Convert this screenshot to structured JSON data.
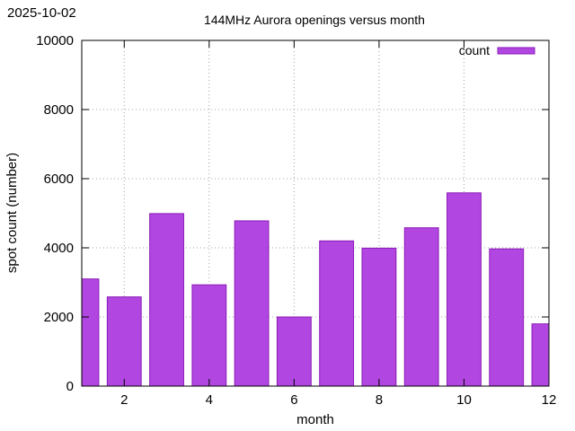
{
  "date_stamp": "2025-10-02",
  "chart_data": {
    "type": "bar",
    "title": "144MHz Aurora openings versus month",
    "xlabel": "month",
    "ylabel": "spot count (number)",
    "xlim": [
      1,
      12
    ],
    "ylim": [
      0,
      10000
    ],
    "x_ticks": [
      2,
      4,
      6,
      8,
      10,
      12
    ],
    "y_ticks": [
      0,
      2000,
      4000,
      6000,
      8000,
      10000
    ],
    "grid": true,
    "legend_position": "top-right",
    "series": [
      {
        "name": "count",
        "color": "#b147e0",
        "stroke": "#8a1ab8",
        "x": [
          1,
          2,
          3,
          4,
          5,
          6,
          7,
          8,
          9,
          10,
          11,
          12
        ],
        "values": [
          3100,
          2580,
          4990,
          2930,
          4780,
          2000,
          4200,
          3990,
          4580,
          5590,
          3970,
          1800
        ]
      }
    ]
  }
}
